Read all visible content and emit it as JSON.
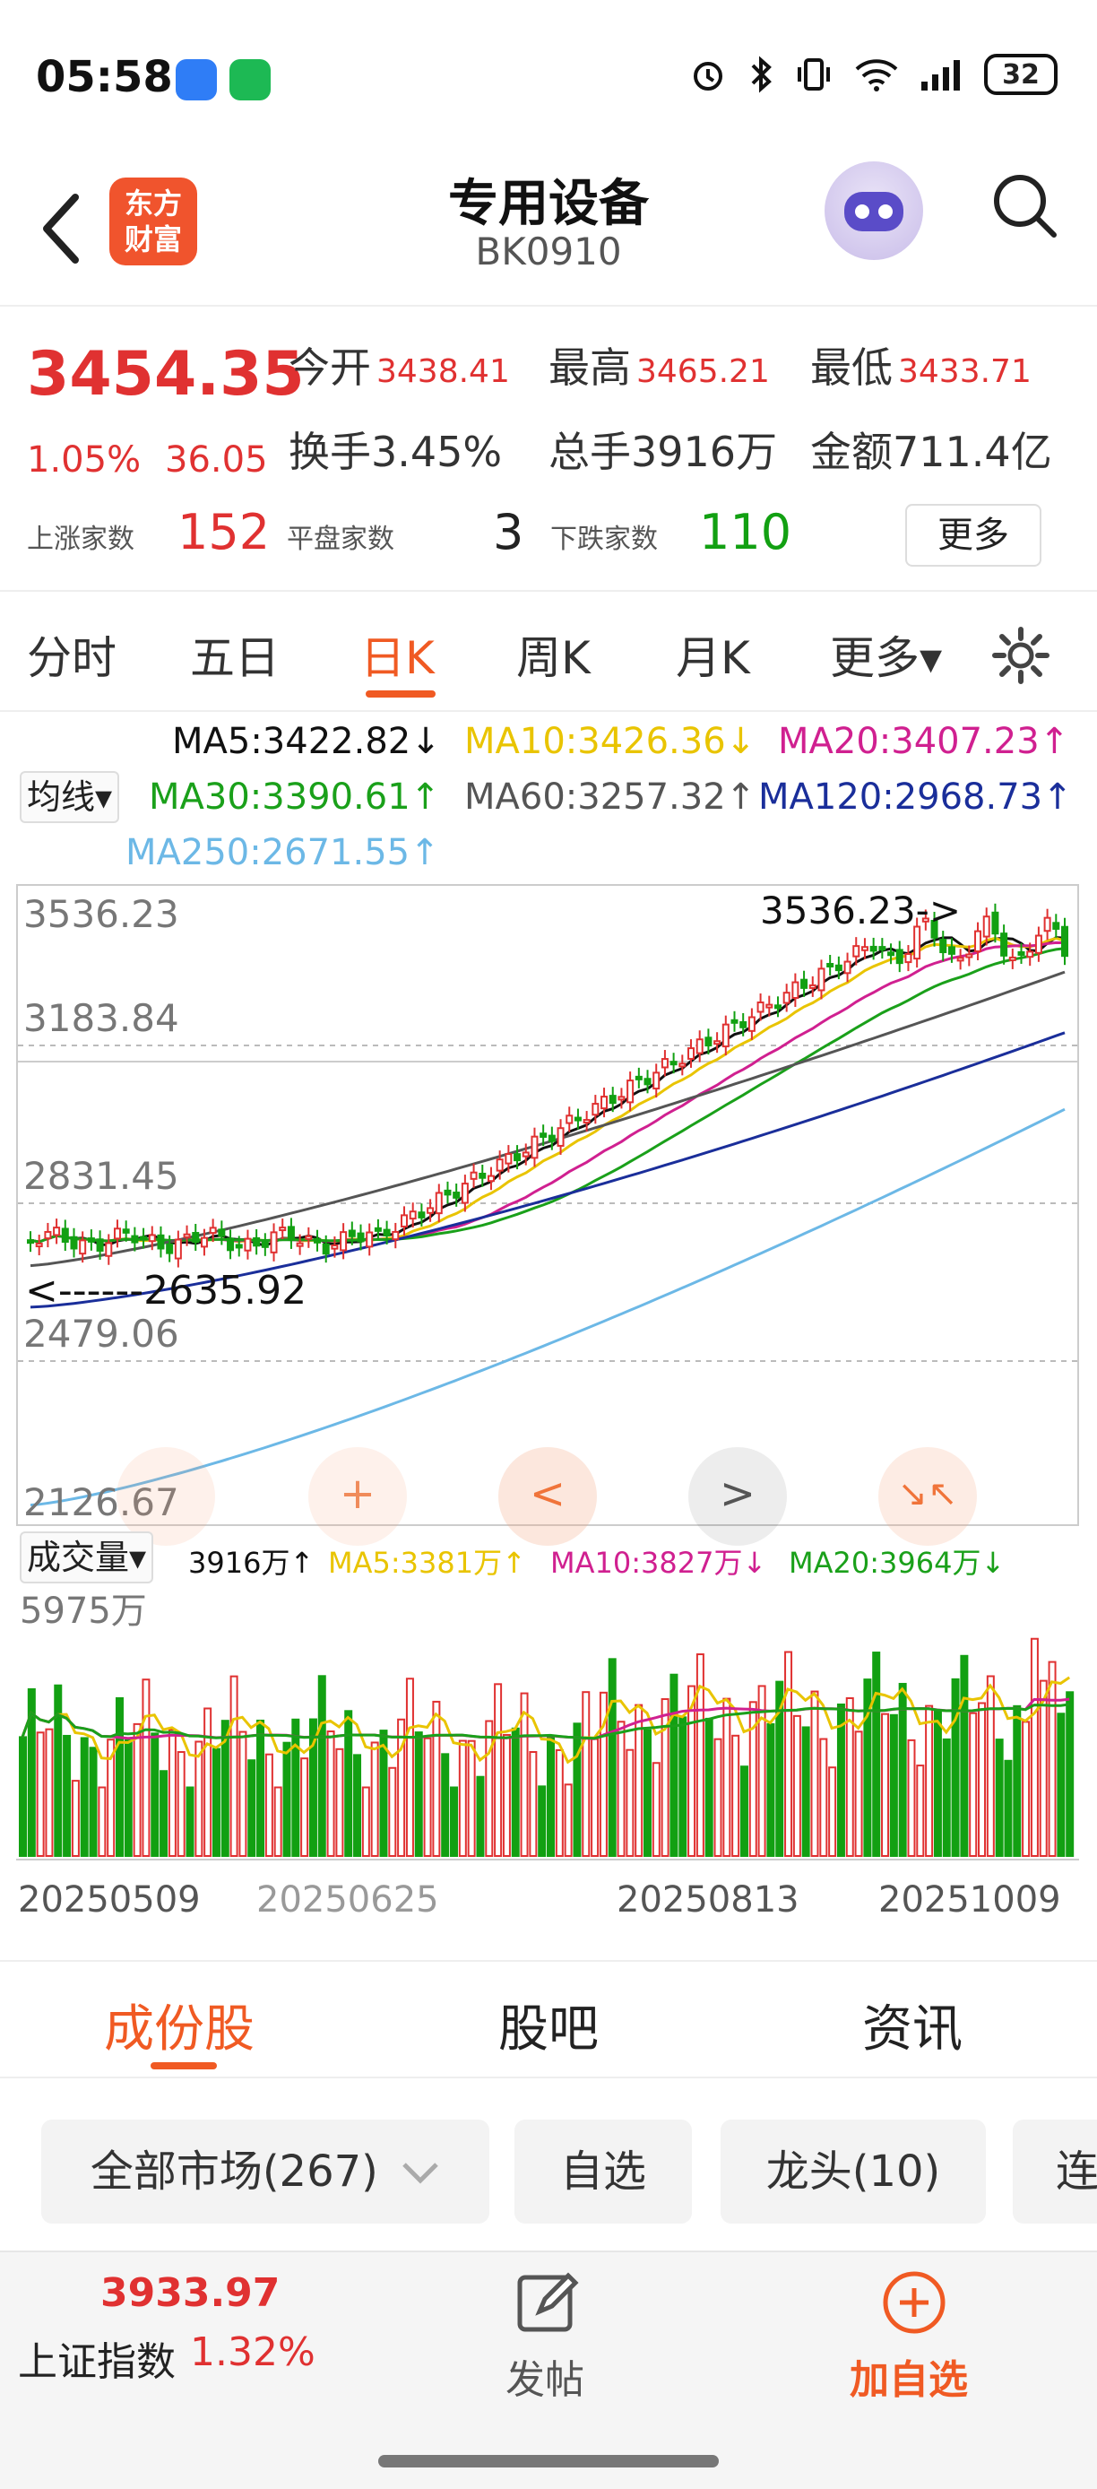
{
  "status_bar": {
    "time": "05:58",
    "battery": "32"
  },
  "header": {
    "title": "专用设备",
    "code": "BK0910",
    "logo_text_line1": "东方",
    "logo_text_line2": "财富"
  },
  "quote": {
    "price": "3454.35",
    "change_pct": "1.05%",
    "change_abs": "36.05",
    "open_label": "今开",
    "open_value": "3438.41",
    "high_label": "最高",
    "high_value": "3465.21",
    "low_label": "最低",
    "low_value": "3433.71",
    "turnover_label": "换手",
    "turnover_value": "3.45%",
    "volume_label": "总手",
    "volume_value": "3916万",
    "amount_label": "金额",
    "amount_value": "711.4亿",
    "up_label": "上涨家数",
    "up_count": "152",
    "flat_label": "平盘家数",
    "flat_count": "3",
    "down_label": "下跌家数",
    "down_count": "110",
    "more_button": "更多"
  },
  "period_tabs": [
    "分时",
    "五日",
    "日K",
    "周K",
    "月K",
    "更多▾"
  ],
  "active_period_tab_index": 2,
  "ma_legend": {
    "ma5": "MA5:3422.82↓",
    "ma10": "MA10:3426.36↓",
    "ma20": "MA20:3407.23↑",
    "ma30": "MA30:3390.61↑",
    "ma60": "MA60:3257.32↑",
    "ma120": "MA120:2968.73↑",
    "ma250": "MA250:2671.55↑",
    "indicator_dropdown": "均线▾"
  },
  "kline_axis": {
    "labels": [
      "3536.23",
      "3183.84",
      "2831.45",
      "2479.06",
      "2126.67"
    ],
    "max_marker": "3536.23->",
    "min_marker": "<------2635.92"
  },
  "volume_legend": {
    "dropdown": "成交量▾",
    "vol": "3916万↑",
    "ma5": "MA5:3381万↑",
    "ma10": "MA10:3827万↓",
    "ma20": "MA20:3964万↓",
    "axis_max": "5975万"
  },
  "date_axis": [
    "20250509",
    "20250625",
    "20250813",
    "20251009"
  ],
  "chart_nav_buttons": [
    "+",
    "<",
    ">",
    "↘↖"
  ],
  "sub_tabs": [
    "成份股",
    "股吧",
    "资讯"
  ],
  "active_sub_tab_index": 0,
  "filters": [
    "全部市场(267)",
    "自选",
    "龙头(10)",
    "连"
  ],
  "bottom_bar": {
    "index_value": "3933.97",
    "index_name": "上证指数",
    "index_pct": "1.32%",
    "post_label": "发帖",
    "add_label": "加自选"
  },
  "colors": {
    "up": "#e03131",
    "down": "#12a012",
    "accent": "#f05a23",
    "ma5": "#111111",
    "ma10": "#e9c400",
    "ma20": "#d02090",
    "ma30": "#1aa01a",
    "ma60": "#555555",
    "ma120": "#1a2e9a",
    "ma250": "#6cb8e6"
  },
  "chart_data": {
    "type": "candlestick",
    "y_range": [
      2126.67,
      3536.23
    ],
    "max_value": 3536.23,
    "min_value": 2635.92,
    "volume_max": "5975万",
    "x_tick_labels": [
      "20250509",
      "20250625",
      "20250813",
      "20251009"
    ]
  }
}
